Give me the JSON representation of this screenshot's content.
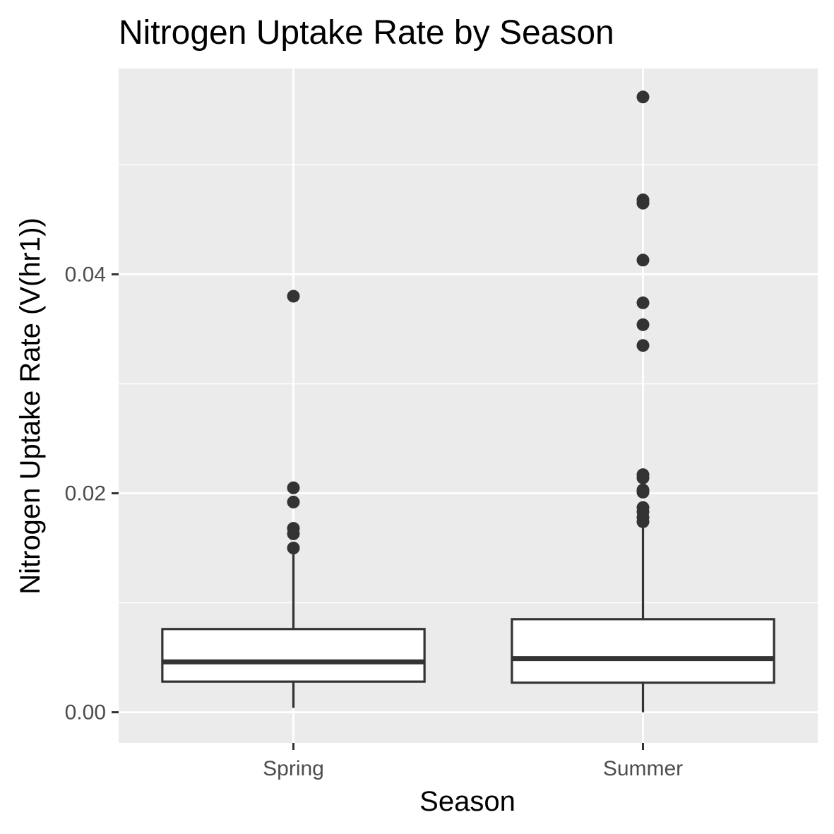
{
  "chart_data": {
    "type": "box",
    "title": "Nitrogen Uptake Rate by Season",
    "xlabel": "Season",
    "ylabel": "Nitrogen Uptake Rate (V(hr1))",
    "categories": [
      "Spring",
      "Summer"
    ],
    "ylim": [
      -0.0028,
      0.0588
    ],
    "y_ticks": [
      0.0,
      0.02,
      0.04
    ],
    "y_tick_labels": [
      "0.00",
      "0.02",
      "0.04"
    ],
    "grid": true,
    "boxes": [
      {
        "category": "Spring",
        "whisker_low": 0.0004,
        "q1": 0.0028,
        "median": 0.0046,
        "q3": 0.0076,
        "whisker_high": 0.0145,
        "outliers": [
          0.038,
          0.0205,
          0.0192,
          0.0168,
          0.0163,
          0.015
        ]
      },
      {
        "category": "Summer",
        "whisker_low": 0.0,
        "q1": 0.0027,
        "median": 0.0049,
        "q3": 0.0085,
        "whisker_high": 0.017,
        "outliers": [
          0.0562,
          0.0468,
          0.0465,
          0.0413,
          0.0374,
          0.0354,
          0.0335,
          0.0217,
          0.0214,
          0.0203,
          0.0201,
          0.0187,
          0.0183,
          0.0178,
          0.0174
        ]
      }
    ],
    "colors": {
      "panel_background": "#ebebeb",
      "grid_major": "#ffffff",
      "box_fill": "#ffffff",
      "box_stroke": "#333333",
      "outlier": "#333333",
      "tick_label": "#4d4d4d",
      "tick_mark": "#333333"
    }
  }
}
